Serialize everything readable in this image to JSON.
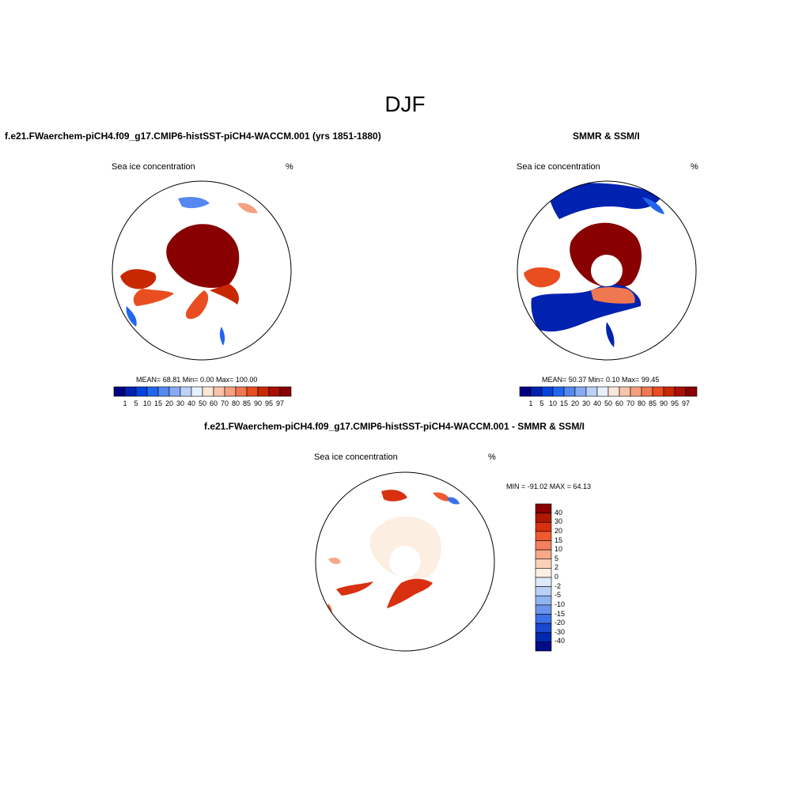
{
  "figure": {
    "title": "DJF"
  },
  "panels": [
    {
      "title": "f.e21.FWaerchem-piCH4.f09_g17.CMIP6-histSST-piCH4-WACCM.001 (yrs 1851-1880)",
      "variable": "Sea ice concentration",
      "units": "%",
      "stats": "MEAN=  68.81  Min=   0.00  Max= 100.00",
      "colorbar_labels": [
        "1",
        "5",
        "10",
        "15",
        "20",
        "30",
        "40",
        "50",
        "60",
        "70",
        "80",
        "85",
        "90",
        "95",
        "97"
      ]
    },
    {
      "title": "SMMR & SSM/I",
      "variable": "Sea ice concentration",
      "units": "%",
      "stats": "MEAN=  50.37  Min=   0.10  Max=  99.45",
      "colorbar_labels": [
        "1",
        "5",
        "10",
        "15",
        "20",
        "30",
        "40",
        "50",
        "60",
        "70",
        "80",
        "85",
        "90",
        "95",
        "97"
      ]
    },
    {
      "title": "f.e21.FWaerchem-piCH4.f09_g17.CMIP6-histSST-piCH4-WACCM.001 - SMMR & SSM/I",
      "variable": "Sea ice concentration",
      "units": "%",
      "stats": "MIN = -91.02 MAX =  64.13",
      "colorbar_labels": [
        "40",
        "30",
        "20",
        "15",
        "10",
        "5",
        "2",
        "0",
        "-2",
        "-5",
        "-10",
        "-15",
        "-20",
        "-30",
        "-40"
      ]
    }
  ],
  "colors": {
    "abs_scale": [
      "#000080",
      "#0022b0",
      "#0044dd",
      "#2266ee",
      "#5588f0",
      "#88aaf5",
      "#bbd2f8",
      "#e8f0fb",
      "#fbe6d8",
      "#f8c4aa",
      "#f5a080",
      "#f07850",
      "#e84e20",
      "#c82800",
      "#a81000",
      "#880000"
    ],
    "diff_scale": [
      "#880000",
      "#b01800",
      "#d83010",
      "#f05a30",
      "#f58060",
      "#f8a888",
      "#fbd0b8",
      "#fdeee2",
      "#ddeafa",
      "#b8d0f5",
      "#90b4f0",
      "#6a94ec",
      "#3c70e6",
      "#1a48d0",
      "#0028b0",
      "#000c88"
    ]
  }
}
